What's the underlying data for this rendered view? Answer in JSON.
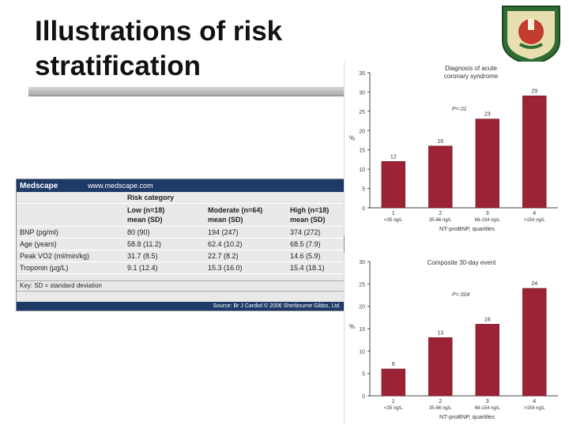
{
  "slide": {
    "title_line1": "Illustrations of risk",
    "title_line2": "stratification"
  },
  "table": {
    "brand": "Medscape",
    "url": "www.medscape.com",
    "risk_category_label": "Risk category",
    "groups": [
      {
        "line1": "Low (n=18)",
        "line2": "mean (SD)"
      },
      {
        "line1": "Moderate (n=64)",
        "line2": "mean (SD)"
      },
      {
        "line1": "High (n=18)",
        "line2": "mean (SD)"
      }
    ],
    "rows": [
      {
        "label": "BNP (pg/ml)",
        "low": "80 (90)",
        "moderate": "194 (247)",
        "high": "374 (272)"
      },
      {
        "label": "Age (years)",
        "low": "58.8 (11.2)",
        "moderate": "62.4 (10.2)",
        "high": "68.5 (7.9)"
      },
      {
        "label": "Peak VO2 (ml/min/kg)",
        "low": "31.7 (8.5)",
        "moderate": "22.7 (8.2)",
        "high": "14.6 (5.9)"
      },
      {
        "label": "Troponin (µg/L)",
        "low": "9.1 (12.4)",
        "moderate": "15.3 (16.0)",
        "high": "15.4 (18.1)"
      }
    ],
    "key": "Key: SD = standard deviation",
    "source": "Source: Br J Cardiol © 2006 Sherbourne Gibbs, Ltd."
  },
  "chart_data": [
    {
      "type": "bar",
      "title": "Diagnosis of acute coronary syndrome",
      "title_lines": [
        "Diagnosis of acute",
        "coronary syndrome"
      ],
      "annotation": "P=.01",
      "ylabel": "%",
      "xlabel": "NT-proBNP, quartiles",
      "ylim": [
        0,
        35
      ],
      "yticks": [
        0,
        5,
        10,
        15,
        20,
        25,
        30,
        35
      ],
      "categories": [
        "1",
        "2",
        "3",
        "4"
      ],
      "category_sublabels": [
        "<35 ng/L",
        "35-66 ng/L",
        "66-154 ng/L",
        ">154 ng/L"
      ],
      "values": [
        12,
        16,
        23,
        29
      ],
      "color": "#9b2335"
    },
    {
      "type": "bar",
      "title": "Composite 30-day event",
      "title_lines": [
        "Composite 30-day event"
      ],
      "annotation": "P=.004",
      "ylabel": "%",
      "xlabel": "NT-proBNP, quartiles",
      "ylim": [
        0,
        30
      ],
      "yticks": [
        0,
        5,
        10,
        15,
        20,
        25,
        30
      ],
      "categories": [
        "1",
        "2",
        "3",
        "4"
      ],
      "category_sublabels": [
        "<35 ng/L",
        "35-66 ng/L",
        "66-154 ng/L",
        ">154 ng/L"
      ],
      "values": [
        6,
        13,
        16,
        24
      ],
      "color": "#9b2335"
    }
  ]
}
